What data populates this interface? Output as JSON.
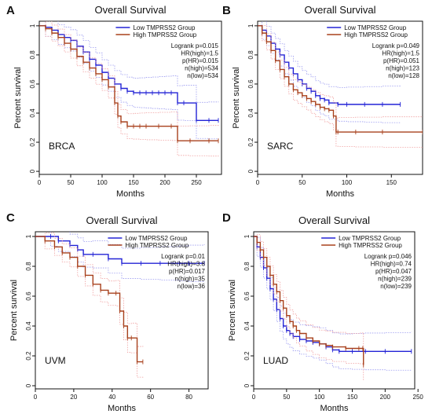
{
  "colors": {
    "low": "#2323d6",
    "high": "#a8401c",
    "low_ci": "#9a9af0",
    "high_ci": "#f0a0a0",
    "axis": "#111111"
  },
  "chart_data": [
    {
      "type": "line",
      "panel_letter": "A",
      "title": "Overall Survival",
      "xlabel": "Months",
      "ylabel": "Percent survival",
      "xlim": [
        0,
        290
      ],
      "ylim": [
        0,
        1.0
      ],
      "xticks": [
        0,
        50,
        100,
        150,
        200,
        250
      ],
      "yticks": [
        0.0,
        0.2,
        0.4,
        0.6,
        0.8,
        1.0
      ],
      "cancer_label": "BRCA",
      "legend": [
        "Low TMPRSS2 Group",
        "High TMPRSS2 Group"
      ],
      "stats": [
        "Logrank p=0.015",
        "HR(high)=1.5",
        "p(HR)=0.015",
        "n(high)=534",
        "n(low)=534"
      ],
      "series": [
        {
          "name": "Low TMPRSS2 Group",
          "x": [
            0,
            10,
            20,
            30,
            40,
            50,
            60,
            70,
            80,
            90,
            100,
            110,
            120,
            130,
            140,
            150,
            160,
            170,
            180,
            190,
            200,
            210,
            220,
            230,
            250,
            270,
            285
          ],
          "y": [
            1.0,
            0.99,
            0.97,
            0.94,
            0.92,
            0.9,
            0.86,
            0.82,
            0.77,
            0.73,
            0.68,
            0.64,
            0.6,
            0.57,
            0.55,
            0.54,
            0.54,
            0.54,
            0.54,
            0.54,
            0.54,
            0.54,
            0.47,
            0.47,
            0.35,
            0.35,
            0.35
          ]
        },
        {
          "name": "High TMPRSS2 Group",
          "x": [
            0,
            10,
            20,
            30,
            40,
            50,
            60,
            70,
            80,
            90,
            100,
            110,
            120,
            125,
            130,
            140,
            150,
            160,
            170,
            190,
            210,
            220,
            240,
            270,
            285
          ],
          "y": [
            1.0,
            0.98,
            0.95,
            0.92,
            0.88,
            0.84,
            0.79,
            0.75,
            0.71,
            0.67,
            0.63,
            0.58,
            0.47,
            0.38,
            0.34,
            0.31,
            0.31,
            0.31,
            0.31,
            0.31,
            0.31,
            0.21,
            0.21,
            0.21,
            0.21
          ]
        }
      ]
    },
    {
      "type": "line",
      "panel_letter": "B",
      "title": "Overall Survival",
      "xlabel": "Months",
      "ylabel": "Percent survival",
      "xlim": [
        0,
        185
      ],
      "ylim": [
        0,
        1.0
      ],
      "xticks": [
        0,
        50,
        100,
        150
      ],
      "yticks": [
        0.0,
        0.2,
        0.4,
        0.6,
        0.8,
        1.0
      ],
      "cancer_label": "SARC",
      "legend": [
        "Low TMPRSS2 Group",
        "High TMPRSS2 Group"
      ],
      "stats": [
        "Logrank p=0.049",
        "HR(high)=1.5",
        "p(HR)=0.051",
        "n(high)=123",
        "n(low)=128"
      ],
      "series": [
        {
          "name": "Low TMPRSS2 Group",
          "x": [
            0,
            5,
            10,
            15,
            20,
            25,
            30,
            35,
            40,
            45,
            50,
            55,
            60,
            65,
            70,
            75,
            80,
            90,
            100,
            120,
            140,
            160
          ],
          "y": [
            1.0,
            0.97,
            0.93,
            0.88,
            0.84,
            0.8,
            0.75,
            0.71,
            0.67,
            0.63,
            0.6,
            0.57,
            0.55,
            0.52,
            0.5,
            0.49,
            0.47,
            0.46,
            0.46,
            0.46,
            0.46,
            0.46
          ]
        },
        {
          "name": "High TMPRSS2 Group",
          "x": [
            0,
            5,
            10,
            15,
            20,
            25,
            30,
            35,
            40,
            45,
            50,
            55,
            60,
            65,
            70,
            75,
            80,
            85,
            88,
            90,
            110,
            140,
            185
          ],
          "y": [
            1.0,
            0.95,
            0.89,
            0.83,
            0.76,
            0.7,
            0.65,
            0.6,
            0.56,
            0.54,
            0.52,
            0.5,
            0.48,
            0.46,
            0.44,
            0.43,
            0.42,
            0.38,
            0.27,
            0.27,
            0.27,
            0.27,
            0.27
          ]
        }
      ]
    },
    {
      "type": "line",
      "panel_letter": "C",
      "title": "Overall Survival",
      "xlabel": "Months",
      "ylabel": "Percent survival",
      "xlim": [
        0,
        90
      ],
      "ylim": [
        0,
        1.0
      ],
      "xticks": [
        0,
        20,
        40,
        60,
        80
      ],
      "yticks": [
        0.0,
        0.2,
        0.4,
        0.6,
        0.8,
        1.0
      ],
      "cancer_label": "UVM",
      "legend": [
        "Low TMPRSS2 Group",
        "High TMPRSS2 Group"
      ],
      "stats": [
        "Logrank p=0.01",
        "HR(high)=3.8",
        "p(HR)=0.017",
        "n(high)=35",
        "n(low)=36"
      ],
      "series": [
        {
          "name": "Low TMPRSS2 Group",
          "x": [
            0,
            8,
            12,
            18,
            22,
            25,
            30,
            38,
            45,
            55,
            65,
            75,
            80,
            88
          ],
          "y": [
            1.0,
            1.0,
            0.97,
            0.94,
            0.91,
            0.88,
            0.88,
            0.85,
            0.82,
            0.82,
            0.82,
            0.82,
            0.82,
            0.82
          ]
        },
        {
          "name": "High TMPRSS2 Group",
          "x": [
            0,
            5,
            10,
            14,
            18,
            22,
            26,
            30,
            34,
            38,
            42,
            44,
            46,
            48,
            50,
            53,
            56
          ],
          "y": [
            1.0,
            0.97,
            0.93,
            0.89,
            0.86,
            0.8,
            0.74,
            0.68,
            0.64,
            0.62,
            0.62,
            0.5,
            0.4,
            0.32,
            0.32,
            0.16,
            0.16
          ]
        }
      ]
    },
    {
      "type": "line",
      "panel_letter": "D",
      "title": "Overall Survival",
      "xlabel": "Months",
      "ylabel": "Percent survival",
      "xlim": [
        0,
        245
      ],
      "ylim": [
        0,
        1.0
      ],
      "xticks": [
        0,
        50,
        100,
        150,
        200,
        250
      ],
      "yticks": [
        0.0,
        0.2,
        0.4,
        0.6,
        0.8,
        1.0
      ],
      "cancer_label": "LUAD",
      "legend": [
        "Low TMPRSS2 Group",
        "High TMPRSS2 Group"
      ],
      "stats": [
        "Logrank p=0.046",
        "HR(high)=0.74",
        "p(HR)=0.047",
        "n(high)=239",
        "n(low)=239"
      ],
      "series": [
        {
          "name": "Low TMPRSS2 Group",
          "x": [
            0,
            5,
            10,
            15,
            20,
            25,
            30,
            35,
            40,
            45,
            50,
            55,
            60,
            70,
            80,
            90,
            100,
            110,
            120,
            130,
            150,
            170,
            200,
            240
          ],
          "y": [
            1.0,
            0.93,
            0.86,
            0.79,
            0.72,
            0.65,
            0.58,
            0.51,
            0.45,
            0.4,
            0.37,
            0.35,
            0.33,
            0.31,
            0.3,
            0.29,
            0.28,
            0.26,
            0.24,
            0.23,
            0.23,
            0.23,
            0.23,
            0.23
          ]
        },
        {
          "name": "High TMPRSS2 Group",
          "x": [
            0,
            5,
            10,
            15,
            20,
            25,
            30,
            35,
            40,
            45,
            50,
            55,
            60,
            65,
            70,
            80,
            90,
            100,
            110,
            120,
            140,
            160,
            166,
            167
          ],
          "y": [
            1.0,
            0.96,
            0.91,
            0.86,
            0.8,
            0.74,
            0.68,
            0.63,
            0.57,
            0.52,
            0.47,
            0.43,
            0.4,
            0.37,
            0.35,
            0.32,
            0.3,
            0.28,
            0.27,
            0.26,
            0.25,
            0.25,
            0.25,
            0.14
          ]
        }
      ]
    }
  ]
}
